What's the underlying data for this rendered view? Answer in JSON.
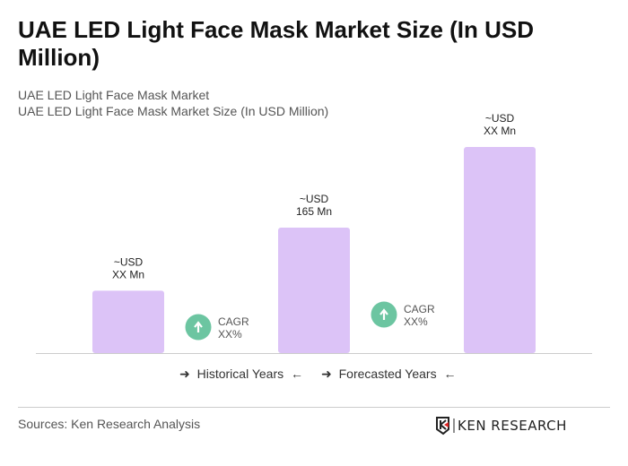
{
  "title": "UAE LED Light Face Mask Market Size (In USD Million)",
  "subtitle1": "UAE LED Light Face Mask Market",
  "subtitle2": "UAE LED Light Face Mask Market Size (In USD Million)",
  "chart_data": {
    "type": "bar",
    "categories": [
      "",
      "",
      ""
    ],
    "values": [
      82,
      165,
      271
    ],
    "value_labels": [
      [
        "~USD",
        "XX Mn"
      ],
      [
        "~USD",
        "165 Mn"
      ],
      [
        "~USD",
        "XX Mn"
      ]
    ],
    "bar_color": "#dcc3f7",
    "ylim": [
      0,
      300
    ],
    "grid": false,
    "cagr": [
      {
        "label": "CAGR",
        "value": "XX%"
      },
      {
        "label": "CAGR",
        "value": "XX%"
      }
    ],
    "cagr_color": "#6cc5a1"
  },
  "legend": {
    "historical": "Historical Years",
    "forecasted": "Forecasted Years"
  },
  "source": "Sources: Ken Research Analysis",
  "logo_text": "KEN RESEARCH"
}
